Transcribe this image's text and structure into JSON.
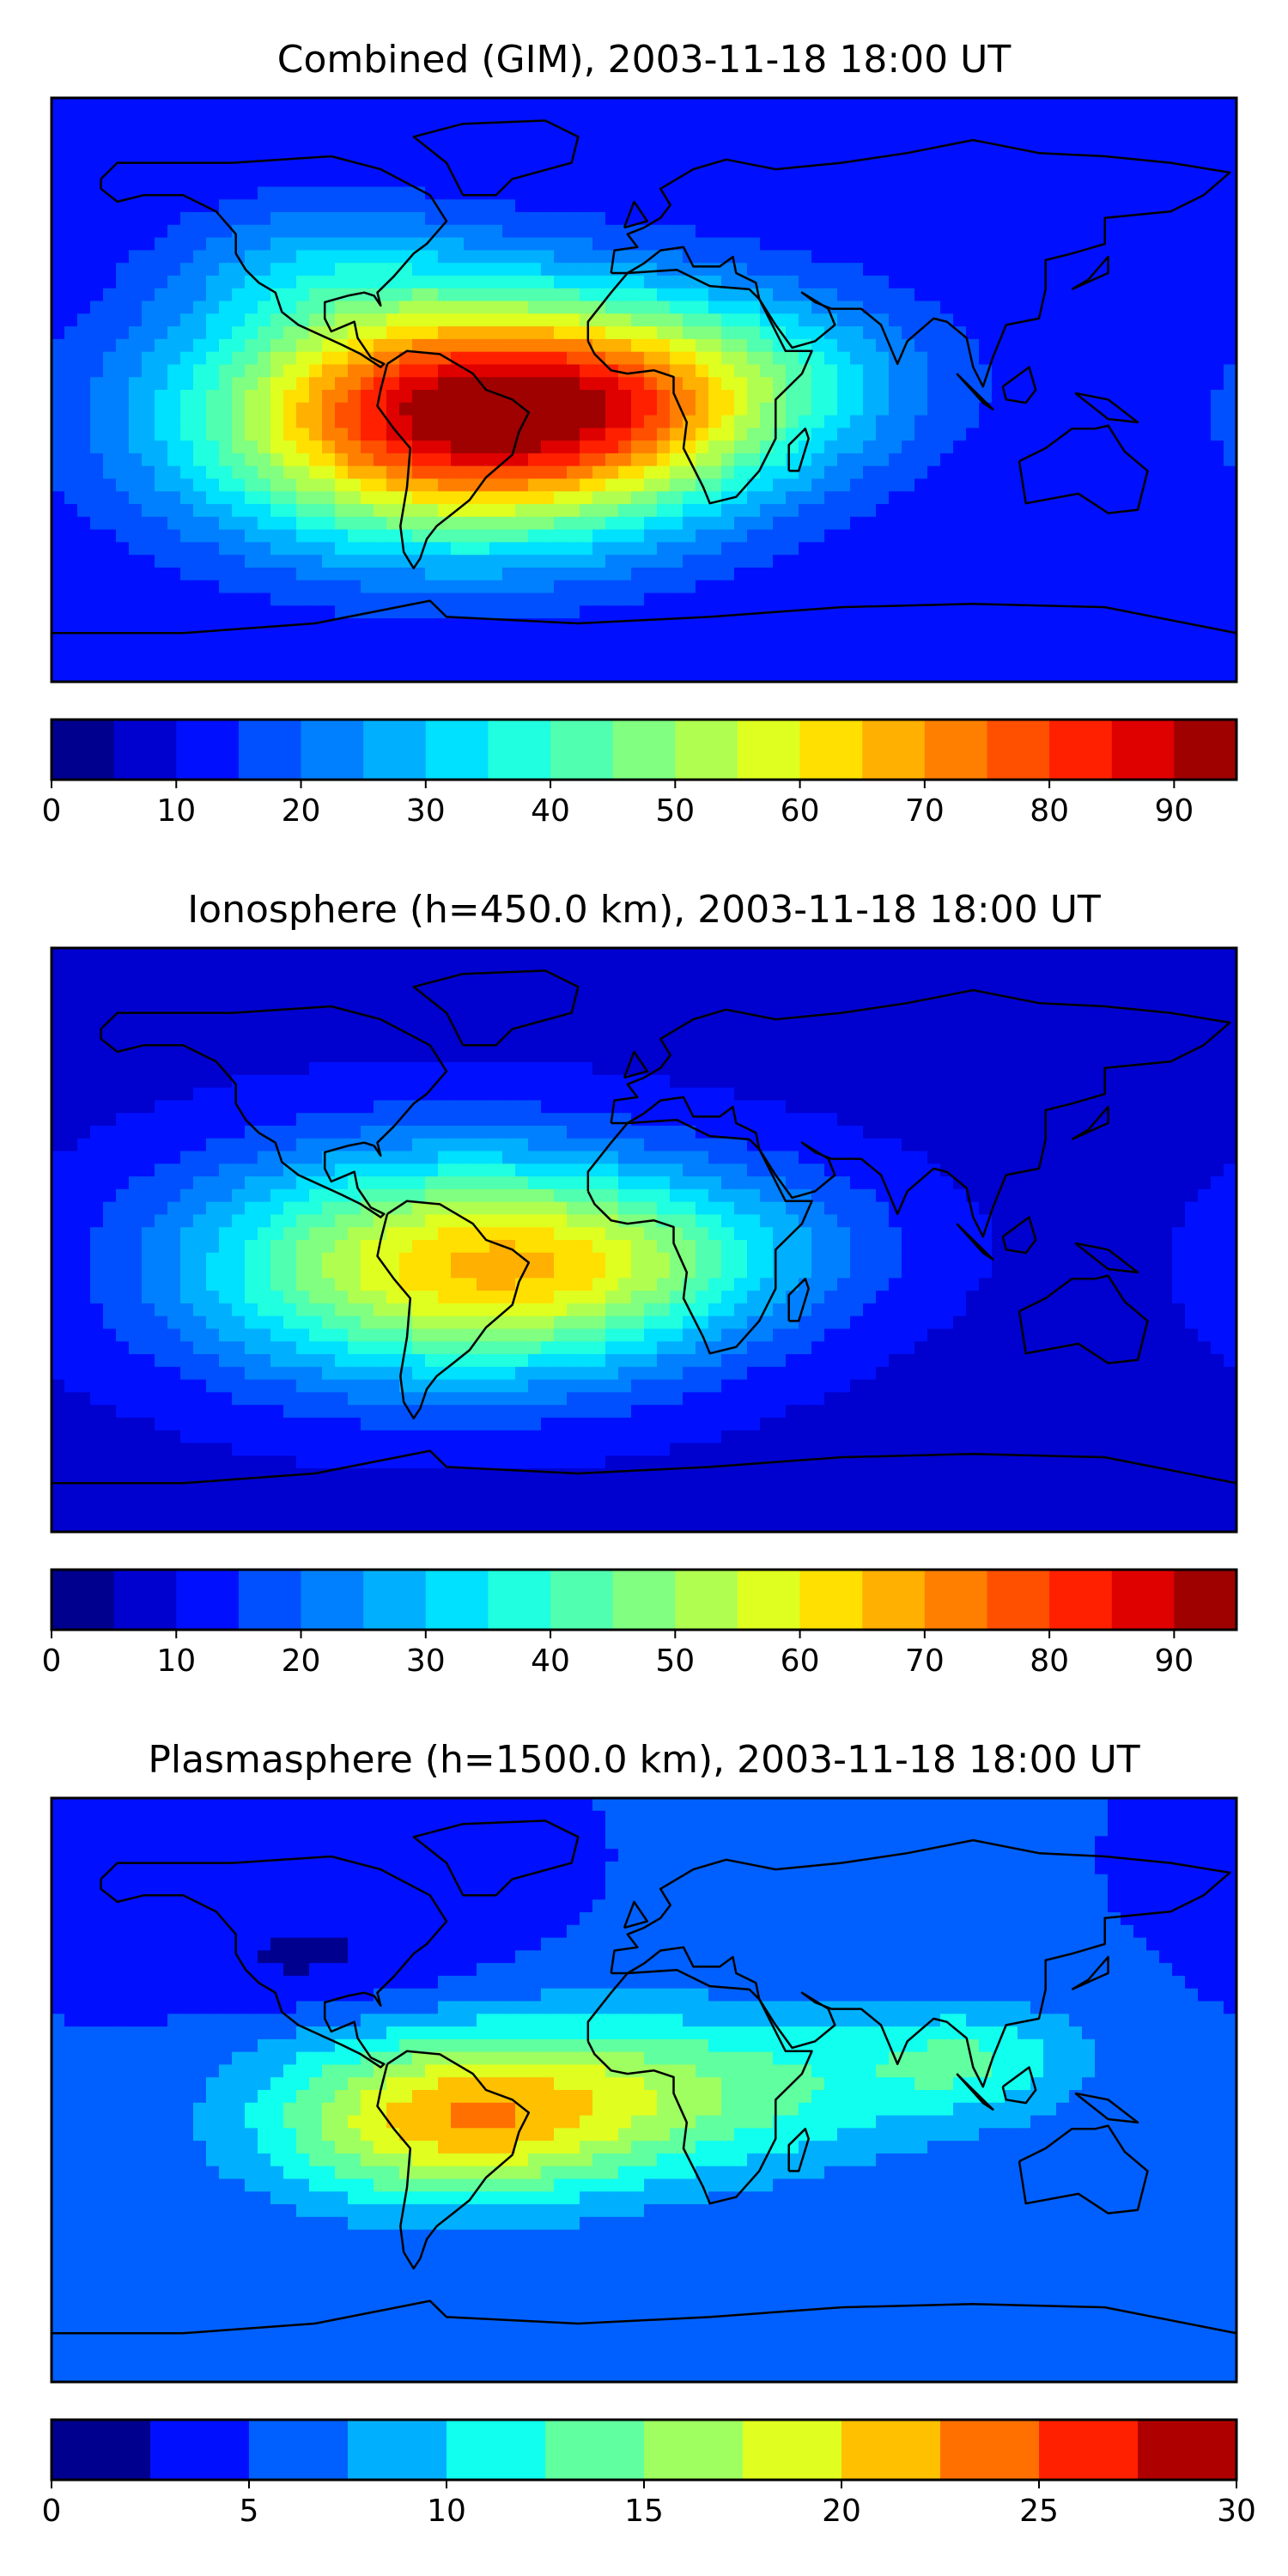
{
  "chart_data": [
    {
      "type": "heatmap",
      "title": "Combined (GIM), 2003-11-18 18:00 UT",
      "colorbar": {
        "levels": [
          0,
          5,
          10,
          15,
          20,
          25,
          30,
          35,
          40,
          45,
          50,
          55,
          60,
          65,
          70,
          75,
          80,
          85,
          90,
          95
        ],
        "ticks": [
          0,
          10,
          20,
          30,
          40,
          50,
          60,
          70,
          80,
          90
        ]
      },
      "colors": [
        "#00008f",
        "#0000cf",
        "#0010ff",
        "#0050ff",
        "#0080ff",
        "#00b0ff",
        "#00e0ff",
        "#20ffdf",
        "#50ffaf",
        "#80ff80",
        "#b0ff50",
        "#dfff20",
        "#ffe000",
        "#ffb000",
        "#ff8000",
        "#ff5000",
        "#ff2000",
        "#df0000",
        "#9f0000"
      ],
      "blobs": [
        {
          "lon": -58,
          "lat": -8,
          "sx": 55,
          "sy": 27,
          "amp": 76
        },
        {
          "lon": -10,
          "lat": -5,
          "sx": 40,
          "sy": 20,
          "amp": 22
        },
        {
          "lon": 40,
          "lat": 5,
          "sx": 40,
          "sy": 20,
          "amp": 14
        },
        {
          "lon": -100,
          "lat": 40,
          "sx": 30,
          "sy": 15,
          "amp": 10
        }
      ],
      "base": 10
    },
    {
      "type": "heatmap",
      "title": "Ionosphere  (h=450.0 km), 2003-11-18 18:00 UT",
      "colorbar": {
        "levels": [
          0,
          5,
          10,
          15,
          20,
          25,
          30,
          35,
          40,
          45,
          50,
          55,
          60,
          65,
          70,
          75,
          80,
          85,
          90,
          95
        ],
        "ticks": [
          0,
          10,
          20,
          30,
          40,
          50,
          60,
          70,
          80,
          90
        ]
      },
      "colors": [
        "#00008f",
        "#0000cf",
        "#0010ff",
        "#0050ff",
        "#0080ff",
        "#00b0ff",
        "#00e0ff",
        "#20ffdf",
        "#50ffaf",
        "#80ff80",
        "#b0ff50",
        "#dfff20",
        "#ffe000",
        "#ffb000",
        "#ff8000",
        "#ff5000",
        "#ff2000",
        "#df0000",
        "#9f0000"
      ],
      "blobs": [
        {
          "lon": -60,
          "lat": -8,
          "sx": 55,
          "sy": 25,
          "amp": 52
        },
        {
          "lon": -10,
          "lat": -8,
          "sx": 35,
          "sy": 18,
          "amp": 14
        },
        {
          "lon": 40,
          "lat": 0,
          "sx": 35,
          "sy": 18,
          "amp": 8
        }
      ],
      "base": 8
    },
    {
      "type": "heatmap",
      "title": "Plasmasphere (h=1500.0 km), 2003-11-18 18:00 UT",
      "colorbar": {
        "levels": [
          0,
          2.5,
          5,
          7.5,
          10,
          12.5,
          15,
          17.5,
          20,
          22.5,
          25,
          27.5,
          30
        ],
        "ticks": [
          0,
          5,
          10,
          15,
          20,
          25,
          30
        ]
      },
      "colors": [
        "#00008f",
        "#0010ff",
        "#0060ff",
        "#00b0ff",
        "#10ffef",
        "#60ff9f",
        "#a0ff60",
        "#e0ff20",
        "#ffc000",
        "#ff7000",
        "#ff2000",
        "#af0000"
      ],
      "blobs": [
        {
          "lon": -60,
          "lat": -10,
          "sx": 40,
          "sy": 18,
          "amp": 14
        },
        {
          "lon": 10,
          "lat": 0,
          "sx": 55,
          "sy": 18,
          "amp": 9
        },
        {
          "lon": 100,
          "lat": 10,
          "sx": 25,
          "sy": 12,
          "amp": 6
        },
        {
          "lon": -100,
          "lat": 40,
          "sx": 35,
          "sy": 12,
          "amp": -3
        }
      ],
      "base": 5
    }
  ]
}
